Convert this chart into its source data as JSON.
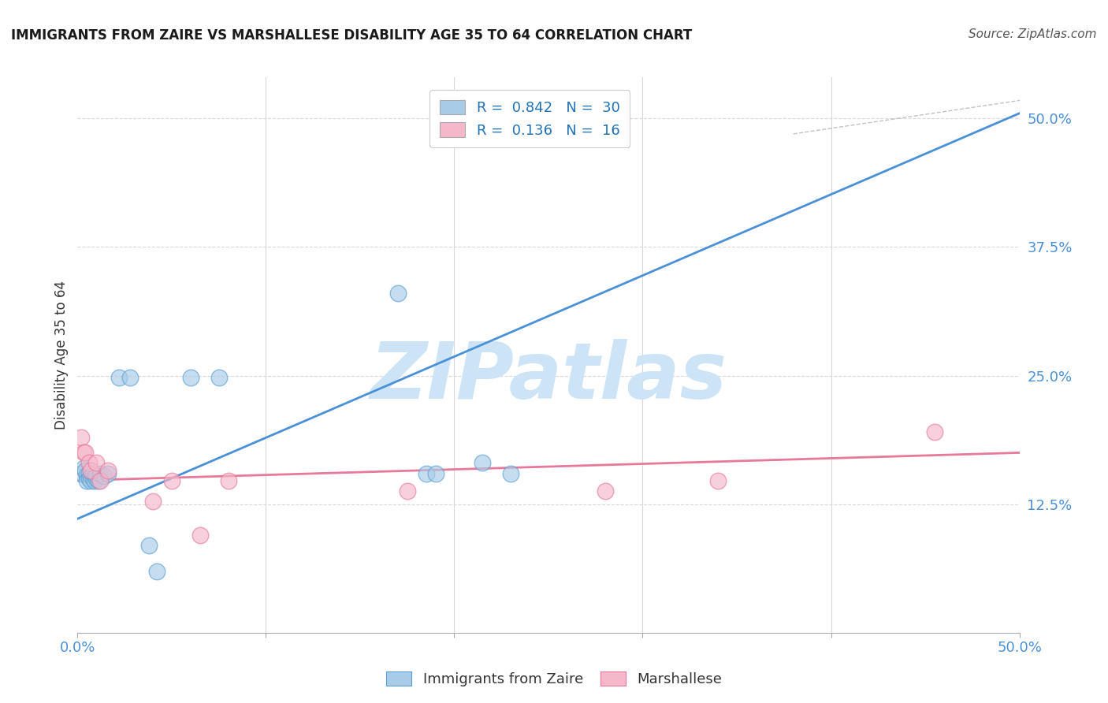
{
  "title": "IMMIGRANTS FROM ZAIRE VS MARSHALLESE DISABILITY AGE 35 TO 64 CORRELATION CHART",
  "source": "Source: ZipAtlas.com",
  "ylabel": "Disability Age 35 to 64",
  "xlim": [
    0.0,
    0.5
  ],
  "ylim": [
    0.0,
    0.54
  ],
  "xticks": [
    0.0,
    0.1,
    0.2,
    0.3,
    0.4,
    0.5
  ],
  "xticklabels": [
    "0.0%",
    "",
    "",
    "",
    "",
    "50.0%"
  ],
  "yticks_right": [
    0.125,
    0.25,
    0.375,
    0.5
  ],
  "ytick_right_labels": [
    "12.5%",
    "25.0%",
    "37.5%",
    "50.0%"
  ],
  "background_color": "#ffffff",
  "grid_color": "#d8d8d8",
  "watermark_text": "ZIPatlas",
  "watermark_color": "#cce4f5",
  "blue_color": "#a8cce8",
  "pink_color": "#f5b8cb",
  "blue_edge_color": "#5a9fd4",
  "pink_edge_color": "#e8799a",
  "blue_line_color": "#4a90d9",
  "pink_line_color": "#e8799a",
  "blue_scatter": [
    [
      0.002,
      0.155
    ],
    [
      0.003,
      0.16
    ],
    [
      0.004,
      0.158
    ],
    [
      0.005,
      0.153
    ],
    [
      0.005,
      0.148
    ],
    [
      0.006,
      0.155
    ],
    [
      0.006,
      0.15
    ],
    [
      0.007,
      0.152
    ],
    [
      0.007,
      0.148
    ],
    [
      0.008,
      0.15
    ],
    [
      0.008,
      0.155
    ],
    [
      0.009,
      0.152
    ],
    [
      0.009,
      0.148
    ],
    [
      0.01,
      0.15
    ],
    [
      0.01,
      0.153
    ],
    [
      0.011,
      0.148
    ],
    [
      0.012,
      0.155
    ],
    [
      0.014,
      0.152
    ],
    [
      0.016,
      0.155
    ],
    [
      0.022,
      0.248
    ],
    [
      0.028,
      0.248
    ],
    [
      0.038,
      0.085
    ],
    [
      0.042,
      0.06
    ],
    [
      0.06,
      0.248
    ],
    [
      0.075,
      0.248
    ],
    [
      0.17,
      0.33
    ],
    [
      0.185,
      0.155
    ],
    [
      0.19,
      0.155
    ],
    [
      0.215,
      0.165
    ],
    [
      0.23,
      0.155
    ]
  ],
  "pink_scatter": [
    [
      0.002,
      0.19
    ],
    [
      0.003,
      0.175
    ],
    [
      0.004,
      0.175
    ],
    [
      0.006,
      0.165
    ],
    [
      0.007,
      0.158
    ],
    [
      0.01,
      0.165
    ],
    [
      0.012,
      0.148
    ],
    [
      0.016,
      0.158
    ],
    [
      0.04,
      0.128
    ],
    [
      0.05,
      0.148
    ],
    [
      0.065,
      0.095
    ],
    [
      0.08,
      0.148
    ],
    [
      0.175,
      0.138
    ],
    [
      0.28,
      0.138
    ],
    [
      0.34,
      0.148
    ],
    [
      0.455,
      0.195
    ]
  ],
  "blue_line_x": [
    -0.02,
    0.5
  ],
  "blue_line_y": [
    0.095,
    0.505
  ],
  "pink_line_x": [
    0.0,
    0.5
  ],
  "pink_line_y": [
    0.148,
    0.175
  ],
  "dashed_line_x": [
    0.38,
    0.62
  ],
  "dashed_line_y": [
    0.485,
    0.55
  ],
  "legend_label1": "Immigrants from Zaire",
  "legend_label2": "Marshallese",
  "title_fontsize": 12,
  "source_fontsize": 11,
  "tick_fontsize": 13,
  "ylabel_fontsize": 12
}
